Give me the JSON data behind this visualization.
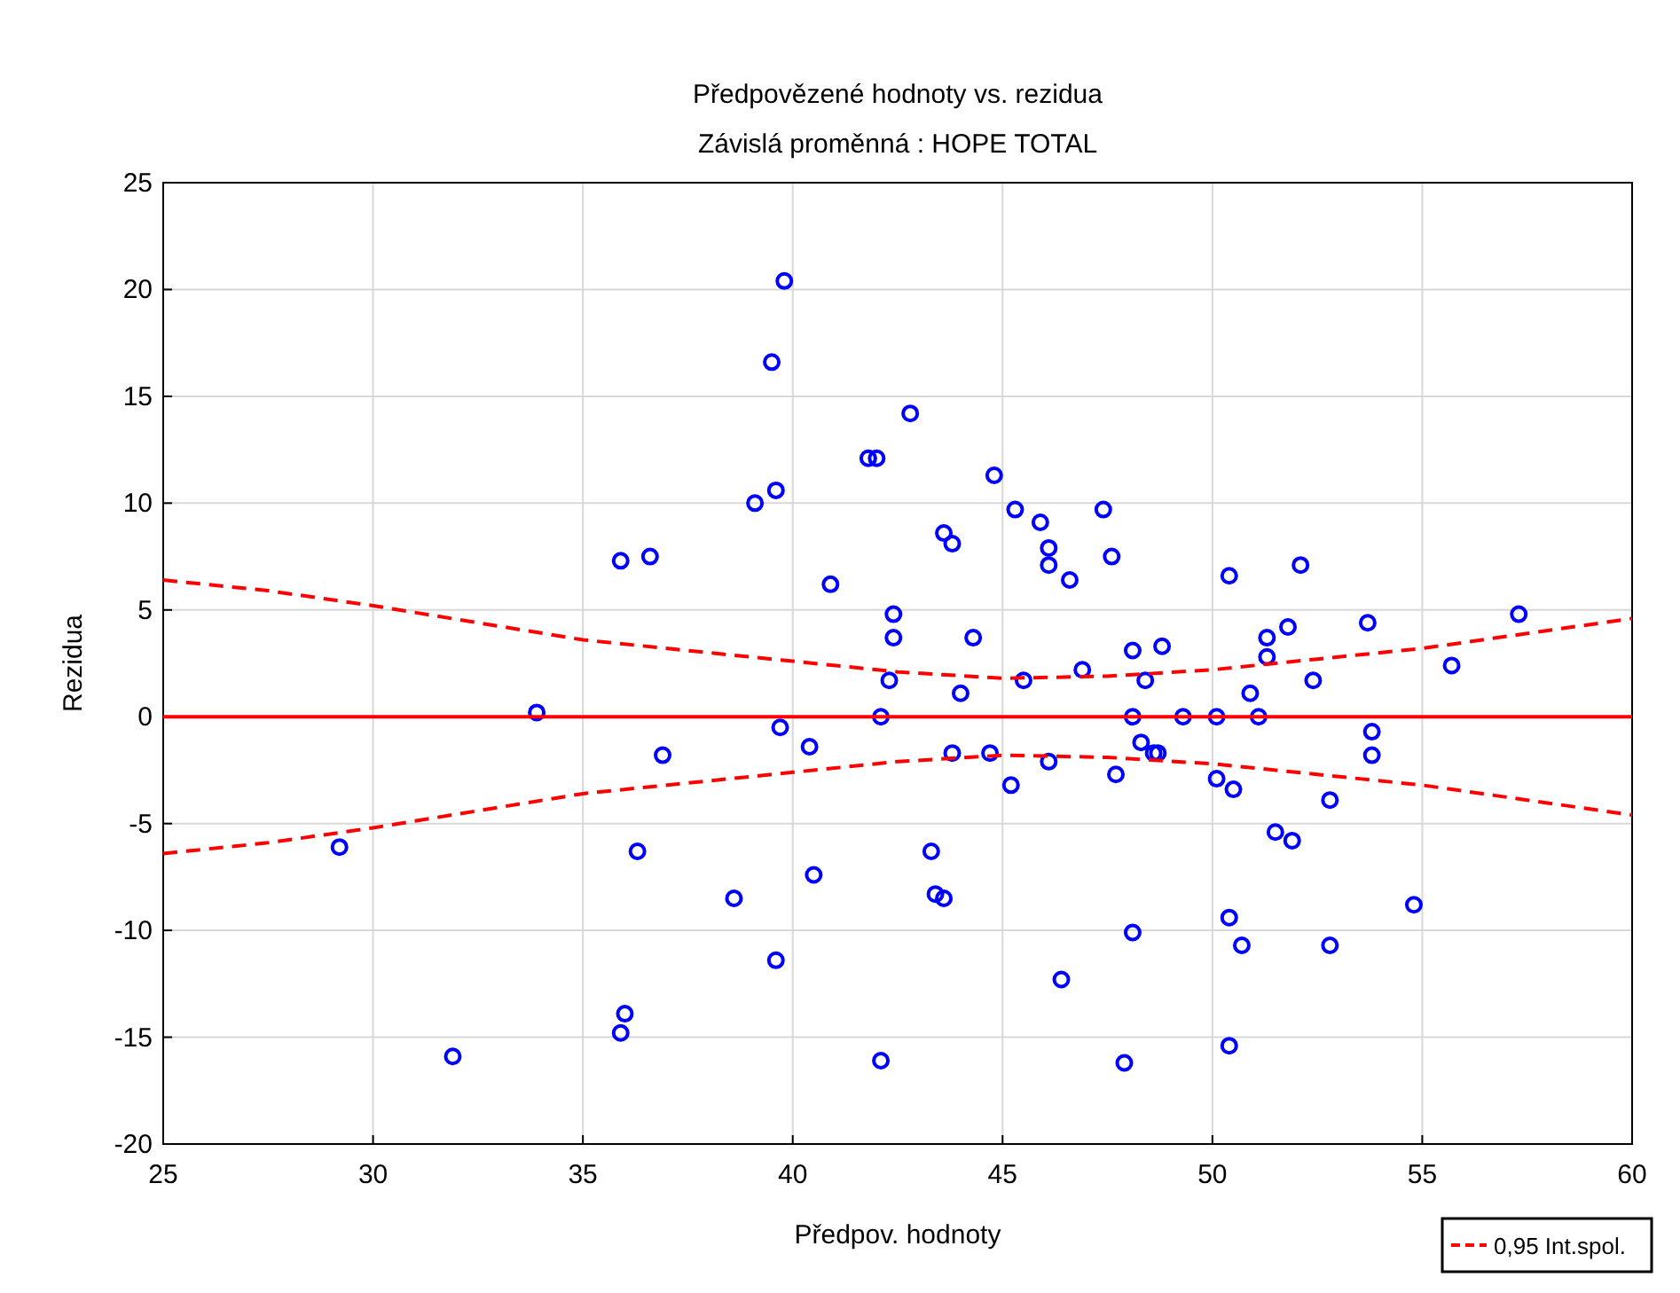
{
  "chart_data": {
    "type": "scatter",
    "title": "Předpovězené hodnoty vs. rezidua",
    "subtitle": "Závislá proměnná :  HOPE TOTAL",
    "xlabel": "Předpov. hodnoty",
    "ylabel": "Rezidua",
    "xlim": [
      25,
      60
    ],
    "xticks": [
      25,
      30,
      35,
      40,
      45,
      50,
      55,
      60
    ],
    "ylim": [
      -20,
      25
    ],
    "yticks": [
      -20,
      -15,
      -10,
      -5,
      0,
      5,
      10,
      15,
      20,
      25
    ],
    "grid": true,
    "legend": "bottom right",
    "series": [
      {
        "color": "#0000ff",
        "marker": "circle",
        "x": [
          29.2,
          31.9,
          33.9,
          35.9,
          35.9,
          36.0,
          36.3,
          36.6,
          36.9,
          38.6,
          39.1,
          39.5,
          39.6,
          39.6,
          39.7,
          39.8,
          40.4,
          40.5,
          40.9,
          41.8,
          42.0,
          42.1,
          42.1,
          42.3,
          42.4,
          42.4,
          42.8,
          43.3,
          43.4,
          43.6,
          43.6,
          43.8,
          43.8,
          44.0,
          44.3,
          44.7,
          44.8,
          45.2,
          45.3,
          45.5,
          45.9,
          46.1,
          46.1,
          46.1,
          46.4,
          46.6,
          46.9,
          47.4,
          47.6,
          47.7,
          47.9,
          48.1,
          48.1,
          48.1,
          48.3,
          48.4,
          48.6,
          48.7,
          48.8,
          49.3,
          50.1,
          50.1,
          50.4,
          50.4,
          50.4,
          50.5,
          50.7,
          50.9,
          51.1,
          51.3,
          51.3,
          51.5,
          51.8,
          51.9,
          52.1,
          52.4,
          52.8,
          52.8,
          53.7,
          53.8,
          53.8,
          54.8,
          55.7,
          57.3
        ],
        "values": [
          -6.1,
          -15.9,
          0.2,
          7.3,
          -14.8,
          -13.9,
          -6.3,
          7.5,
          -1.8,
          -8.5,
          10.0,
          16.6,
          10.6,
          -11.4,
          -0.5,
          20.4,
          -1.4,
          -7.4,
          6.2,
          12.1,
          12.1,
          -16.1,
          0.0,
          1.7,
          4.8,
          3.7,
          14.2,
          -6.3,
          -8.3,
          -8.5,
          8.6,
          8.1,
          -1.7,
          1.1,
          3.7,
          -1.7,
          11.3,
          -3.2,
          9.7,
          1.7,
          9.1,
          7.9,
          7.1,
          -2.1,
          -12.3,
          6.4,
          2.2,
          9.7,
          7.5,
          -2.7,
          -16.2,
          3.1,
          -10.1,
          0.0,
          -1.2,
          1.7,
          -1.7,
          -1.7,
          3.3,
          0.0,
          -2.9,
          0.0,
          6.6,
          -9.4,
          -15.4,
          -3.4,
          -10.7,
          1.1,
          0.0,
          2.8,
          3.7,
          -5.4,
          4.2,
          -5.8,
          7.1,
          1.7,
          -3.9,
          -10.7,
          4.4,
          -0.7,
          -1.8,
          -8.8,
          2.4,
          4.8
        ]
      },
      {
        "type": "line",
        "color": "#ff0000",
        "line_style": "solid",
        "x": [
          25,
          60
        ],
        "values": [
          0,
          0
        ]
      },
      {
        "type": "line",
        "name": "0,95 Int.spol.",
        "color": "#ff0000",
        "line_style": "dashed",
        "x": [
          25,
          27.5,
          30,
          32.5,
          35,
          37.5,
          40,
          42.5,
          45,
          47.5,
          50,
          52.5,
          55,
          57.5,
          60
        ],
        "values": [
          6.4,
          5.9,
          5.2,
          4.4,
          3.6,
          3.1,
          2.6,
          2.1,
          1.8,
          1.9,
          2.2,
          2.7,
          3.2,
          3.9,
          4.6
        ]
      },
      {
        "type": "line",
        "color": "#ff0000",
        "line_style": "dashed",
        "x": [
          25,
          27.5,
          30,
          32.5,
          35,
          37.5,
          40,
          42.5,
          45,
          47.5,
          50,
          52.5,
          55,
          57.5,
          60
        ],
        "values": [
          -6.4,
          -5.9,
          -5.2,
          -4.4,
          -3.6,
          -3.1,
          -2.6,
          -2.1,
          -1.8,
          -1.9,
          -2.2,
          -2.7,
          -3.2,
          -3.9,
          -4.6
        ]
      }
    ]
  }
}
